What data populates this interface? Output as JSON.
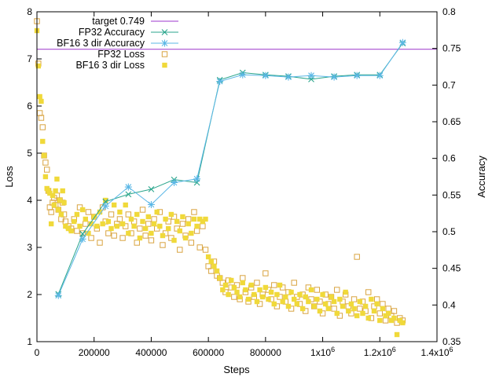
{
  "chart_data": {
    "type": "scatter",
    "xlabel": "Steps",
    "ylabel_left": "Loss",
    "ylabel_right": "Accuracy",
    "xlim": [
      0,
      1400000
    ],
    "ylim_left": [
      1,
      8
    ],
    "ylim_right": [
      0.35,
      0.8
    ],
    "x_ticks": [
      {
        "value": 0,
        "label": "0"
      },
      {
        "value": 200000,
        "label": "200000"
      },
      {
        "value": 400000,
        "label": "400000"
      },
      {
        "value": 600000,
        "label": "600000"
      },
      {
        "value": 800000,
        "label": "800000"
      },
      {
        "value": 1000000,
        "label": "1x10"
      },
      {
        "value": 1200000,
        "label": "1.2x10"
      },
      {
        "value": 1400000,
        "label": "1.4x10"
      }
    ],
    "x_tick_exponent": "6",
    "y_left_ticks": [
      1,
      2,
      3,
      4,
      5,
      6,
      7,
      8
    ],
    "y_right_ticks": [
      "0.35",
      "0.4",
      "0.45",
      "0.5",
      "0.55",
      "0.6",
      "0.65",
      "0.7",
      "0.75",
      "0.8"
    ],
    "legend_position": "top-left",
    "series": [
      {
        "name": "target 0.749",
        "kind": "hline",
        "axis": "right",
        "color": "#b05fd6",
        "value": 0.749
      },
      {
        "name": "FP32 Accuracy",
        "kind": "linepoints",
        "marker": "x",
        "axis": "right",
        "color": "#2aa58c",
        "x": [
          75000,
          160000,
          240000,
          320000,
          400000,
          480000,
          560000,
          640000,
          720000,
          800000,
          880000,
          960000,
          1040000,
          1120000,
          1200000,
          1280000
        ],
        "y": [
          0.415,
          0.497,
          0.541,
          0.551,
          0.558,
          0.571,
          0.567,
          0.707,
          0.717,
          0.714,
          0.712,
          0.708,
          0.712,
          0.714,
          0.714,
          0.757
        ]
      },
      {
        "name": "BF16 3 dir Accuracy",
        "kind": "linepoints",
        "marker": "star",
        "axis": "right",
        "color": "#5bb7e6",
        "x": [
          75000,
          160000,
          240000,
          320000,
          400000,
          480000,
          560000,
          640000,
          720000,
          800000,
          880000,
          960000,
          1040000,
          1120000,
          1200000,
          1280000
        ],
        "y": [
          0.413,
          0.49,
          0.535,
          0.561,
          0.537,
          0.567,
          0.572,
          0.705,
          0.714,
          0.713,
          0.711,
          0.713,
          0.711,
          0.713,
          0.713,
          0.758
        ]
      },
      {
        "name": "FP32 Loss",
        "kind": "scatter",
        "marker": "open-square",
        "axis": "left",
        "color": "#d9a441",
        "x": [
          0,
          5000,
          10000,
          15000,
          20000,
          25000,
          30000,
          35000,
          40000,
          45000,
          50000,
          55000,
          60000,
          65000,
          70000,
          75000,
          80000,
          85000,
          90000,
          95000,
          100000,
          110000,
          120000,
          130000,
          140000,
          150000,
          160000,
          170000,
          180000,
          190000,
          200000,
          210000,
          220000,
          230000,
          240000,
          250000,
          260000,
          270000,
          280000,
          290000,
          300000,
          310000,
          320000,
          330000,
          340000,
          350000,
          360000,
          370000,
          380000,
          390000,
          400000,
          410000,
          420000,
          430000,
          440000,
          450000,
          460000,
          470000,
          480000,
          490000,
          500000,
          510000,
          520000,
          530000,
          540000,
          550000,
          560000,
          570000,
          580000,
          590000,
          600000,
          610000,
          620000,
          630000,
          640000,
          650000,
          660000,
          670000,
          680000,
          690000,
          700000,
          710000,
          720000,
          730000,
          740000,
          750000,
          760000,
          770000,
          780000,
          790000,
          800000,
          810000,
          820000,
          830000,
          840000,
          850000,
          860000,
          870000,
          880000,
          890000,
          900000,
          910000,
          920000,
          930000,
          940000,
          950000,
          960000,
          970000,
          980000,
          990000,
          1000000,
          1010000,
          1020000,
          1030000,
          1040000,
          1050000,
          1060000,
          1070000,
          1080000,
          1090000,
          1100000,
          1110000,
          1120000,
          1130000,
          1140000,
          1150000,
          1160000,
          1170000,
          1180000,
          1190000,
          1200000,
          1210000,
          1220000,
          1230000,
          1240000,
          1250000,
          1260000,
          1270000,
          1280000
        ],
        "y": [
          7.8,
          6.9,
          5.85,
          5.75,
          5.55,
          4.95,
          4.8,
          4.65,
          4.2,
          3.85,
          3.75,
          3.95,
          4.05,
          3.9,
          4.1,
          3.8,
          4.0,
          3.6,
          3.95,
          3.7,
          3.55,
          3.45,
          3.4,
          3.6,
          3.35,
          3.85,
          3.3,
          3.5,
          3.75,
          3.2,
          3.65,
          3.4,
          3.1,
          3.85,
          3.55,
          3.3,
          3.7,
          3.25,
          3.5,
          3.6,
          3.2,
          3.45,
          3.7,
          3.3,
          3.55,
          3.1,
          3.4,
          3.8,
          3.25,
          3.5,
          3.15,
          3.6,
          3.4,
          3.75,
          3.05,
          3.3,
          3.55,
          3.2,
          3.65,
          3.4,
          2.95,
          3.5,
          3.25,
          3.6,
          3.1,
          3.75,
          3.35,
          3.0,
          3.45,
          2.95,
          2.6,
          2.5,
          2.7,
          2.4,
          2.35,
          2.25,
          2.05,
          2.3,
          2.15,
          1.95,
          2.2,
          1.9,
          2.35,
          2.05,
          1.85,
          2.15,
          1.95,
          2.25,
          1.8,
          2.0,
          2.45,
          2.1,
          1.9,
          2.2,
          1.75,
          1.95,
          2.15,
          1.85,
          2.05,
          1.7,
          2.25,
          1.95,
          1.8,
          2.0,
          1.65,
          2.15,
          1.9,
          1.75,
          2.1,
          1.85,
          1.6,
          2.0,
          1.8,
          1.95,
          1.7,
          2.1,
          1.55,
          1.85,
          2.0,
          1.75,
          1.6,
          1.9,
          2.8,
          1.7,
          1.85,
          1.65,
          2.05,
          1.5,
          1.75,
          1.9,
          1.6,
          1.8,
          1.45,
          1.7,
          1.55,
          1.65,
          1.4,
          1.5,
          1.45
        ]
      },
      {
        "name": "BF16 3 dir Loss",
        "kind": "scatter",
        "marker": "filled-square",
        "axis": "left",
        "color": "#f0d93a",
        "x": [
          0,
          5000,
          10000,
          15000,
          20000,
          25000,
          30000,
          35000,
          40000,
          45000,
          50000,
          55000,
          60000,
          65000,
          70000,
          75000,
          80000,
          85000,
          90000,
          95000,
          100000,
          110000,
          120000,
          130000,
          140000,
          150000,
          160000,
          170000,
          180000,
          190000,
          200000,
          210000,
          220000,
          230000,
          240000,
          250000,
          260000,
          270000,
          280000,
          290000,
          300000,
          310000,
          320000,
          330000,
          340000,
          350000,
          360000,
          370000,
          380000,
          390000,
          400000,
          410000,
          420000,
          430000,
          440000,
          450000,
          460000,
          470000,
          480000,
          490000,
          500000,
          510000,
          520000,
          530000,
          540000,
          550000,
          560000,
          570000,
          580000,
          590000,
          600000,
          610000,
          620000,
          630000,
          640000,
          650000,
          660000,
          670000,
          680000,
          690000,
          700000,
          710000,
          720000,
          730000,
          740000,
          750000,
          760000,
          770000,
          780000,
          790000,
          800000,
          810000,
          820000,
          830000,
          840000,
          850000,
          860000,
          870000,
          880000,
          890000,
          900000,
          910000,
          920000,
          930000,
          940000,
          950000,
          960000,
          970000,
          980000,
          990000,
          1000000,
          1010000,
          1020000,
          1030000,
          1040000,
          1050000,
          1060000,
          1070000,
          1080000,
          1090000,
          1100000,
          1110000,
          1120000,
          1130000,
          1140000,
          1150000,
          1160000,
          1170000,
          1180000,
          1190000,
          1200000,
          1210000,
          1220000,
          1230000,
          1240000,
          1250000,
          1260000,
          1270000,
          1280000
        ],
        "y": [
          7.6,
          6.85,
          6.2,
          6.1,
          5.25,
          4.95,
          4.5,
          4.25,
          4.2,
          4.15,
          3.5,
          4.1,
          3.9,
          4.2,
          4.45,
          3.8,
          4.0,
          3.7,
          4.2,
          3.95,
          3.45,
          3.4,
          3.35,
          3.55,
          3.7,
          3.45,
          3.8,
          3.6,
          3.3,
          3.5,
          3.65,
          3.45,
          3.75,
          3.5,
          4.0,
          3.55,
          3.4,
          3.9,
          3.45,
          3.75,
          3.5,
          3.9,
          3.3,
          3.6,
          3.45,
          3.7,
          3.2,
          3.55,
          3.4,
          3.65,
          3.3,
          3.5,
          3.75,
          3.45,
          3.25,
          3.6,
          3.4,
          3.7,
          3.15,
          3.55,
          3.35,
          3.65,
          3.2,
          3.5,
          3.3,
          3.6,
          3.45,
          3.6,
          3.55,
          3.6,
          2.8,
          2.7,
          2.6,
          2.5,
          2.35,
          2.1,
          2.2,
          2.0,
          2.3,
          2.15,
          2.05,
          1.95,
          2.25,
          2.1,
          1.9,
          2.2,
          2.0,
          1.85,
          2.1,
          1.95,
          2.15,
          1.9,
          2.05,
          1.8,
          2.0,
          2.2,
          1.85,
          1.95,
          1.75,
          2.05,
          1.9,
          1.8,
          2.0,
          1.7,
          1.95,
          1.85,
          2.1,
          1.75,
          1.9,
          1.65,
          2.0,
          1.8,
          1.7,
          1.95,
          1.85,
          1.6,
          1.9,
          1.75,
          2.05,
          1.65,
          1.8,
          1.7,
          1.55,
          1.85,
          1.6,
          1.75,
          1.5,
          1.9,
          1.65,
          1.8,
          1.45,
          1.7,
          1.55,
          1.6,
          1.45,
          1.5,
          1.15,
          1.45,
          1.4
        ]
      }
    ]
  }
}
